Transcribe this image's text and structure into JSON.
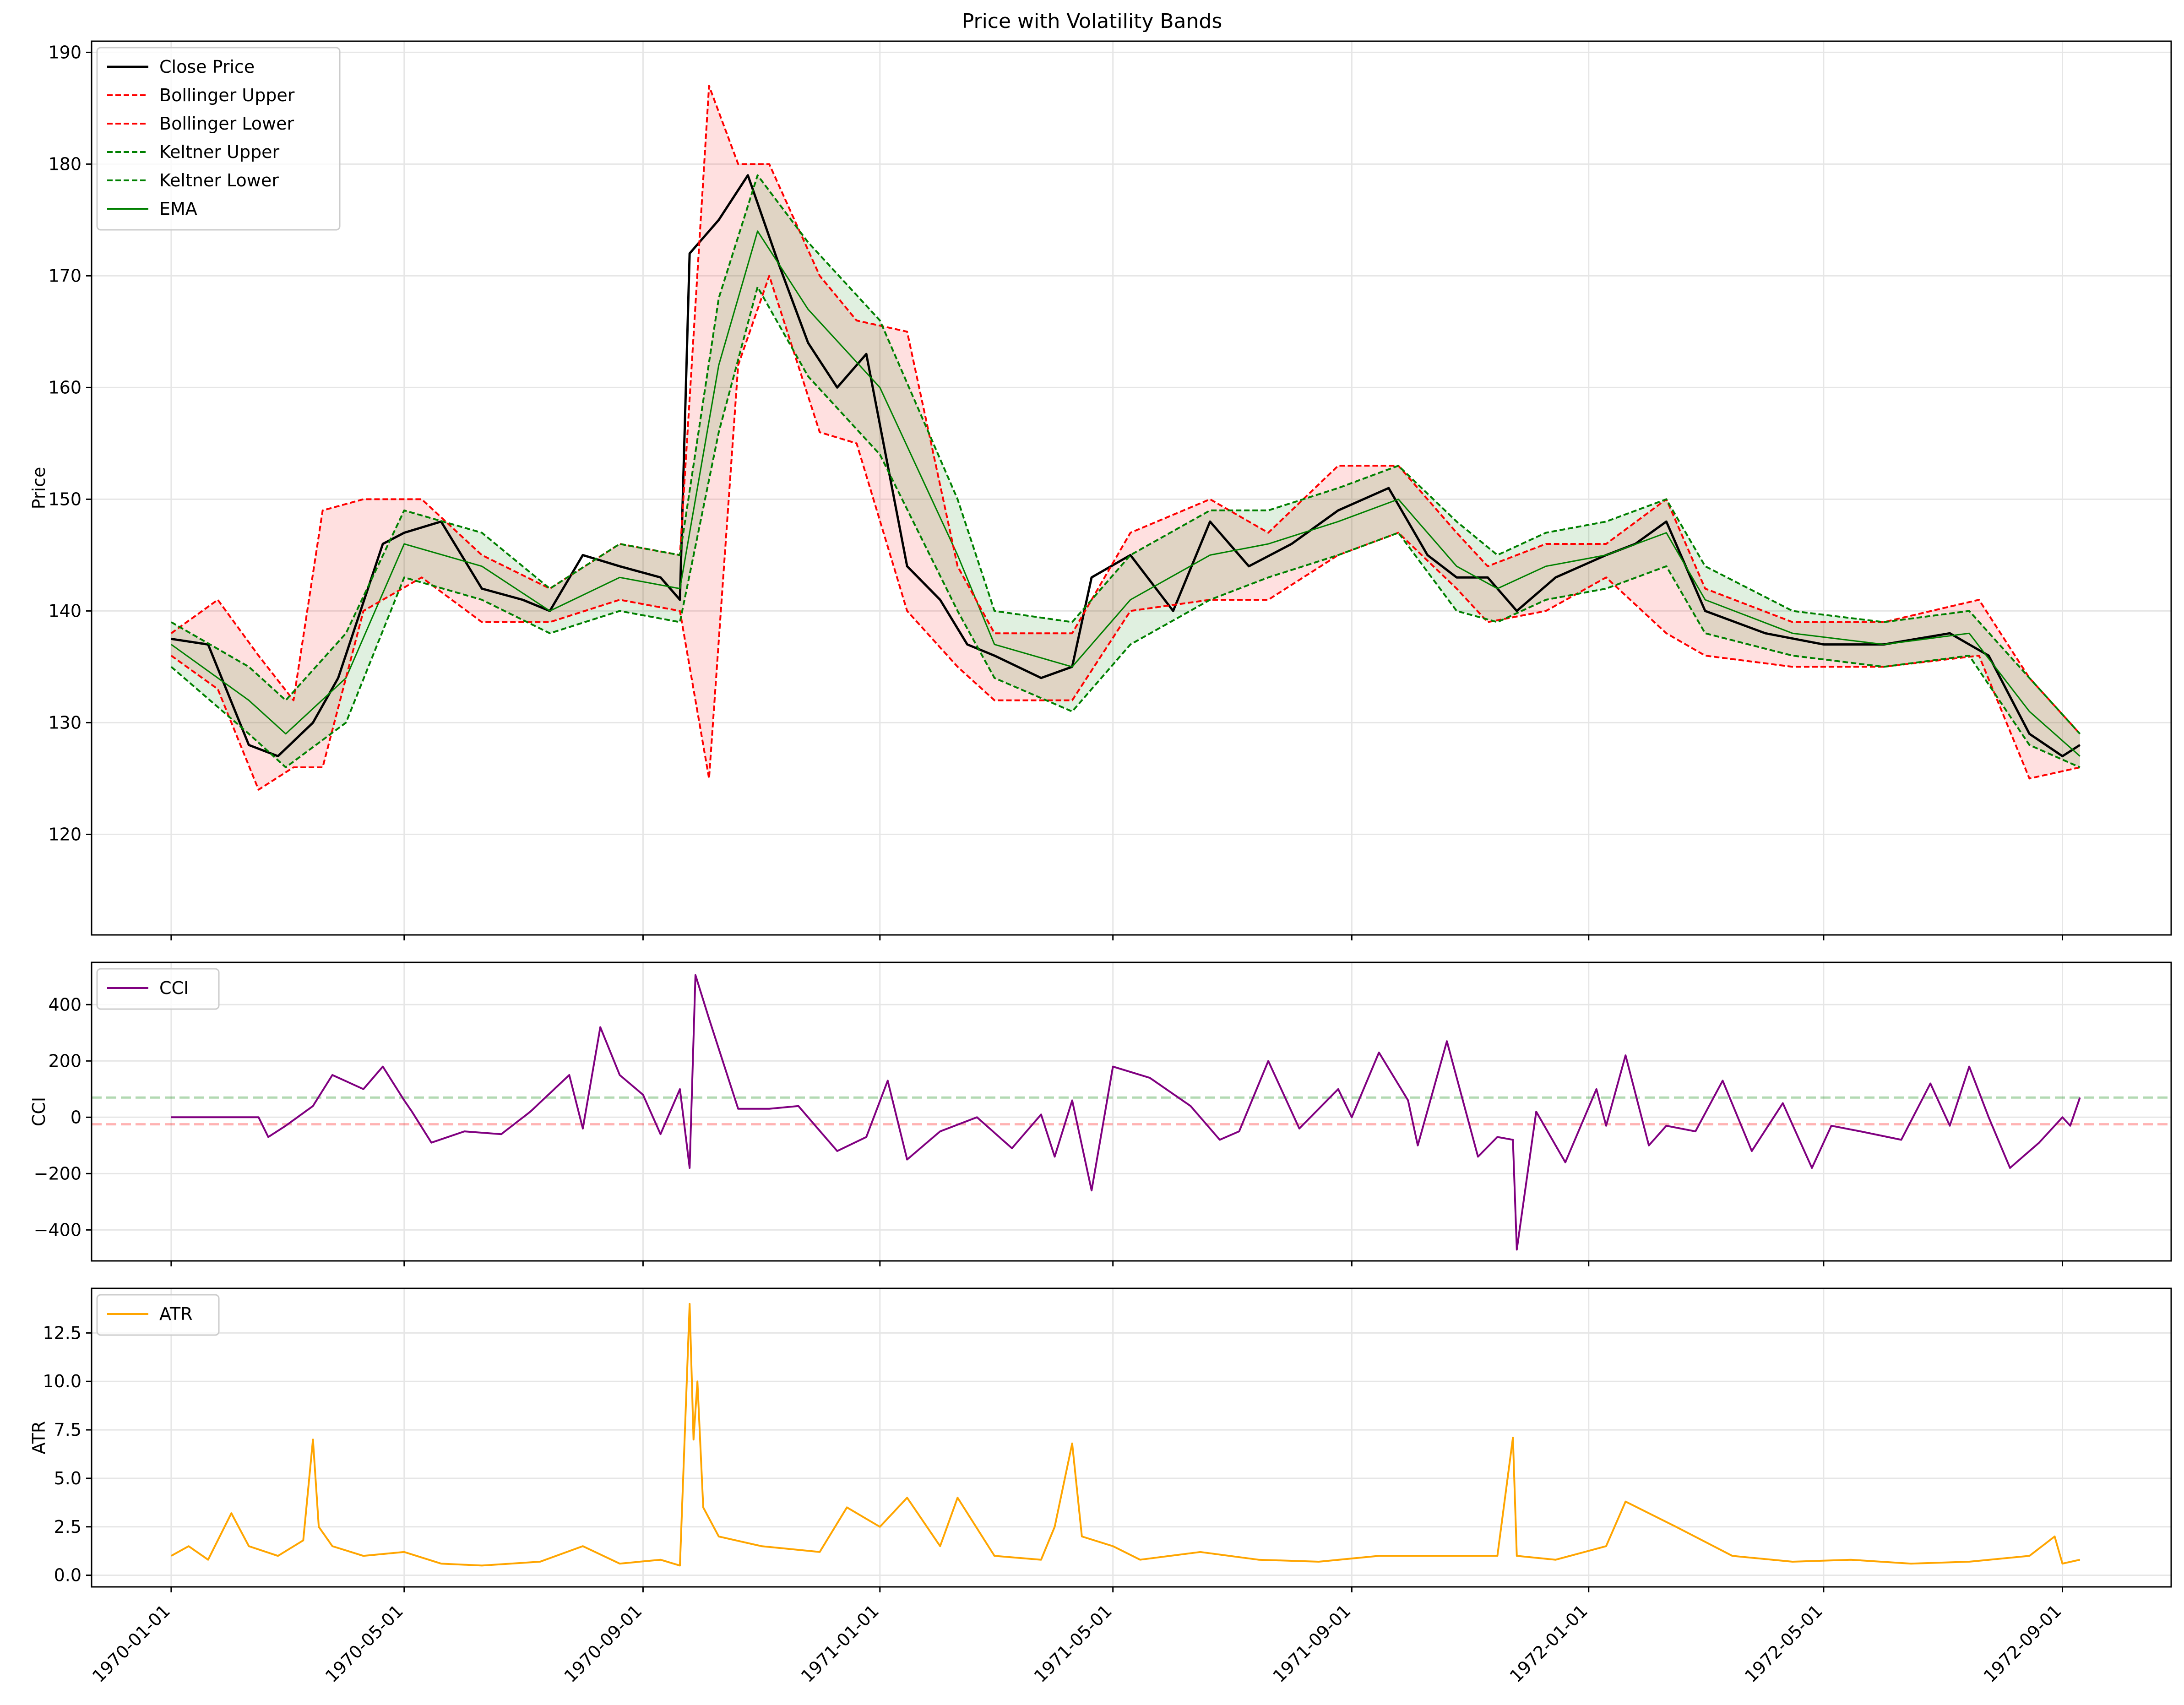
{
  "chart_data": [
    {
      "type": "line",
      "title": "Price with Volatility Bands",
      "ylabel": "Price",
      "xlabel": "",
      "ylim": [
        111,
        191
      ],
      "yticks": [
        120,
        130,
        140,
        150,
        160,
        170,
        180,
        190
      ],
      "grid": true,
      "legend_position": "top-left",
      "legend": [
        {
          "label": "Close Price",
          "color": "#000000",
          "style": "solid"
        },
        {
          "label": "Bollinger Upper",
          "color": "#ff0000",
          "style": "dashed"
        },
        {
          "label": "Bollinger Lower",
          "color": "#ff0000",
          "style": "dashed"
        },
        {
          "label": "Keltner Upper",
          "color": "#008000",
          "style": "dashed"
        },
        {
          "label": "Keltner Lower",
          "color": "#008000",
          "style": "dashed"
        },
        {
          "label": "EMA",
          "color": "#008000",
          "style": "solid"
        }
      ],
      "series": [
        {
          "name": "Close Price",
          "x": [
            "1970-01-01",
            "1970-01-20",
            "1970-02-10",
            "1970-02-25",
            "1970-03-15",
            "1970-03-28",
            "1970-04-20",
            "1970-05-01",
            "1970-05-20",
            "1970-06-10",
            "1970-07-01",
            "1970-07-15",
            "1970-08-01",
            "1970-08-20",
            "1970-09-10",
            "1970-09-20",
            "1970-09-25",
            "1970-10-10",
            "1970-10-25",
            "1970-11-10",
            "1970-11-25",
            "1970-12-10",
            "1970-12-25",
            "1971-01-15",
            "1971-02-01",
            "1971-02-15",
            "1971-03-01",
            "1971-03-25",
            "1971-04-10",
            "1971-04-20",
            "1971-05-10",
            "1971-06-01",
            "1971-06-20",
            "1971-07-10",
            "1971-08-01",
            "1971-08-25",
            "1971-09-20",
            "1971-10-10",
            "1971-10-25",
            "1971-11-10",
            "1971-11-25",
            "1971-12-15",
            "1972-01-10",
            "1972-01-25",
            "1972-02-10",
            "1972-03-01",
            "1972-04-01",
            "1972-05-01",
            "1972-06-01",
            "1972-07-05",
            "1972-07-25",
            "1972-08-15",
            "1972-09-01",
            "1972-09-10"
          ],
          "values": [
            137.5,
            137,
            128,
            127,
            130,
            134,
            146,
            147,
            148,
            142,
            141,
            140,
            145,
            144,
            143,
            141,
            172,
            175,
            179,
            171,
            164,
            160,
            163,
            144,
            141,
            137,
            136,
            134,
            135,
            143,
            145,
            140,
            148,
            144,
            146,
            149,
            151,
            145,
            143,
            143,
            140,
            143,
            145,
            146,
            148,
            140,
            138,
            137,
            137,
            138,
            136,
            129,
            127,
            128
          ]
        },
        {
          "name": "EMA",
          "x": [
            "1970-01-01",
            "1970-02-10",
            "1970-03-01",
            "1970-04-01",
            "1970-05-01",
            "1970-06-10",
            "1970-07-15",
            "1970-08-20",
            "1970-09-20",
            "1970-10-10",
            "1970-10-30",
            "1970-11-25",
            "1971-01-01",
            "1971-02-10",
            "1971-03-01",
            "1971-04-10",
            "1971-05-10",
            "1971-06-20",
            "1971-07-20",
            "1971-08-25",
            "1971-09-25",
            "1971-10-25",
            "1971-11-15",
            "1971-12-10",
            "1972-01-10",
            "1972-02-10",
            "1972-03-01",
            "1972-04-15",
            "1972-06-01",
            "1972-07-15",
            "1972-08-15",
            "1972-09-10"
          ],
          "values": [
            137,
            132,
            129,
            134,
            146,
            144,
            140,
            143,
            142,
            162,
            174,
            167,
            160,
            145,
            137,
            135,
            141,
            145,
            146,
            148,
            150,
            144,
            142,
            144,
            145,
            147,
            141,
            138,
            137,
            138,
            131,
            127
          ]
        },
        {
          "name": "Bollinger Upper",
          "x": [
            "1970-01-01",
            "1970-01-25",
            "1970-02-15",
            "1970-03-05",
            "1970-03-20",
            "1970-04-10",
            "1970-05-10",
            "1970-06-10",
            "1970-07-15",
            "1970-08-20",
            "1970-09-20",
            "1970-10-05",
            "1970-10-20",
            "1970-11-05",
            "1970-12-01",
            "1970-12-20",
            "1971-01-15",
            "1971-02-10",
            "1971-03-01",
            "1971-04-10",
            "1971-05-10",
            "1971-06-20",
            "1971-07-20",
            "1971-08-25",
            "1971-09-25",
            "1971-10-25",
            "1971-11-10",
            "1971-12-10",
            "1972-01-10",
            "1972-02-10",
            "1972-03-01",
            "1972-04-15",
            "1972-06-01",
            "1972-07-20",
            "1972-08-15",
            "1972-09-10"
          ],
          "values": [
            138,
            141,
            136,
            132,
            149,
            150,
            150,
            145,
            142,
            146,
            145,
            187,
            180,
            180,
            170,
            166,
            165,
            144,
            138,
            138,
            147,
            150,
            147,
            153,
            153,
            147,
            144,
            146,
            146,
            150,
            142,
            139,
            139,
            141,
            134,
            129
          ]
        },
        {
          "name": "Bollinger Lower",
          "x": [
            "1970-01-01",
            "1970-01-25",
            "1970-02-15",
            "1970-03-05",
            "1970-03-20",
            "1970-04-10",
            "1970-05-10",
            "1970-06-10",
            "1970-07-15",
            "1970-08-20",
            "1970-09-20",
            "1970-10-05",
            "1970-10-20",
            "1970-11-05",
            "1970-12-01",
            "1970-12-20",
            "1971-01-15",
            "1971-02-10",
            "1971-03-01",
            "1971-04-10",
            "1971-05-10",
            "1971-06-20",
            "1971-07-20",
            "1971-08-25",
            "1971-09-25",
            "1971-10-25",
            "1971-11-10",
            "1971-12-10",
            "1972-01-10",
            "1972-02-10",
            "1972-03-01",
            "1972-04-15",
            "1972-06-01",
            "1972-07-20",
            "1972-08-15",
            "1972-09-10"
          ],
          "values": [
            136,
            133,
            124,
            126,
            126,
            140,
            143,
            139,
            139,
            141,
            140,
            125,
            162,
            170,
            156,
            155,
            140,
            135,
            132,
            132,
            140,
            141,
            141,
            145,
            147,
            142,
            139,
            140,
            143,
            138,
            136,
            135,
            135,
            136,
            125,
            126
          ]
        },
        {
          "name": "Keltner Upper",
          "x": [
            "1970-01-01",
            "1970-02-10",
            "1970-03-01",
            "1970-04-01",
            "1970-05-01",
            "1970-06-10",
            "1970-07-15",
            "1970-08-20",
            "1970-09-20",
            "1970-10-10",
            "1970-10-30",
            "1970-11-25",
            "1971-01-01",
            "1971-02-10",
            "1971-03-01",
            "1971-04-10",
            "1971-05-10",
            "1971-06-20",
            "1971-07-20",
            "1971-08-25",
            "1971-09-25",
            "1971-10-25",
            "1971-11-15",
            "1971-12-10",
            "1972-01-10",
            "1972-02-10",
            "1972-03-01",
            "1972-04-15",
            "1972-06-01",
            "1972-07-15",
            "1972-08-15",
            "1972-09-10"
          ],
          "values": [
            139,
            135,
            132,
            138,
            149,
            147,
            142,
            146,
            145,
            168,
            179,
            173,
            166,
            150,
            140,
            139,
            145,
            149,
            149,
            151,
            153,
            148,
            145,
            147,
            148,
            150,
            144,
            140,
            139,
            140,
            134,
            129
          ]
        },
        {
          "name": "Keltner Lower",
          "x": [
            "1970-01-01",
            "1970-02-10",
            "1970-03-01",
            "1970-04-01",
            "1970-05-01",
            "1970-06-10",
            "1970-07-15",
            "1970-08-20",
            "1970-09-20",
            "1970-10-10",
            "1970-10-30",
            "1970-11-25",
            "1971-01-01",
            "1971-02-10",
            "1971-03-01",
            "1971-04-10",
            "1971-05-10",
            "1971-06-20",
            "1971-07-20",
            "1971-08-25",
            "1971-09-25",
            "1971-10-25",
            "1971-11-15",
            "1971-12-10",
            "1972-01-10",
            "1972-02-10",
            "1972-03-01",
            "1972-04-15",
            "1972-06-01",
            "1972-07-15",
            "1972-08-15",
            "1972-09-10"
          ],
          "values": [
            135,
            129,
            126,
            130,
            143,
            141,
            138,
            140,
            139,
            156,
            169,
            161,
            154,
            140,
            134,
            131,
            137,
            141,
            143,
            145,
            147,
            140,
            139,
            141,
            142,
            144,
            138,
            136,
            135,
            136,
            128,
            126
          ]
        }
      ]
    },
    {
      "type": "line",
      "ylabel": "CCI",
      "ylim": [
        -510,
        550
      ],
      "yticks": [
        -400,
        -200,
        0,
        200,
        400
      ],
      "grid": true,
      "legend_position": "top-left",
      "legend": [
        {
          "label": "CCI",
          "color": "#800080",
          "style": "solid"
        }
      ],
      "thresholds": [
        {
          "value": 70,
          "color": "#008000"
        },
        {
          "value": -25,
          "color": "#ff0000"
        }
      ],
      "series": [
        {
          "name": "CCI",
          "x": [
            "1970-01-01",
            "1970-01-25",
            "1970-02-15",
            "1970-02-20",
            "1970-03-01",
            "1970-03-15",
            "1970-03-25",
            "1970-04-10",
            "1970-04-20",
            "1970-05-01",
            "1970-05-05",
            "1970-05-15",
            "1970-06-01",
            "1970-06-20",
            "1970-07-05",
            "1970-07-25",
            "1970-08-01",
            "1970-08-10",
            "1970-08-20",
            "1970-09-01",
            "1970-09-10",
            "1970-09-20",
            "1970-09-25",
            "1970-09-28",
            "1970-10-05",
            "1970-10-20",
            "1970-11-05",
            "1970-11-20",
            "1970-12-10",
            "1970-12-25",
            "1971-01-05",
            "1971-01-15",
            "1971-02-01",
            "1971-02-20",
            "1971-03-10",
            "1971-03-25",
            "1971-04-01",
            "1971-04-10",
            "1971-04-20",
            "1971-05-01",
            "1971-05-20",
            "1971-06-10",
            "1971-06-25",
            "1971-07-05",
            "1971-07-20",
            "1971-08-05",
            "1971-08-25",
            "1971-09-01",
            "1971-09-15",
            "1971-09-30",
            "1971-10-05",
            "1971-10-20",
            "1971-11-05",
            "1971-11-15",
            "1971-11-23",
            "1971-11-25",
            "1971-12-05",
            "1971-12-20",
            "1972-01-05",
            "1972-01-10",
            "1972-01-20",
            "1972-02-01",
            "1972-02-10",
            "1972-02-25",
            "1972-03-10",
            "1972-03-25",
            "1972-04-10",
            "1972-04-25",
            "1972-05-05",
            "1972-05-20",
            "1972-06-10",
            "1972-06-25",
            "1972-07-05",
            "1972-07-15",
            "1972-07-25",
            "1972-08-05",
            "1972-08-20",
            "1972-09-01",
            "1972-09-05",
            "1972-09-10"
          ],
          "values": [
            0,
            0,
            0,
            -70,
            -30,
            40,
            150,
            100,
            180,
            60,
            20,
            -90,
            -50,
            -60,
            20,
            150,
            -40,
            320,
            150,
            80,
            -60,
            100,
            -180,
            505,
            350,
            30,
            30,
            40,
            -120,
            -70,
            130,
            -150,
            -50,
            0,
            -110,
            10,
            -140,
            60,
            -260,
            180,
            140,
            40,
            -80,
            -50,
            200,
            -40,
            100,
            0,
            230,
            60,
            -100,
            270,
            -140,
            -70,
            -80,
            -470,
            20,
            -160,
            100,
            -30,
            220,
            -100,
            -30,
            -50,
            130,
            -120,
            50,
            -180,
            -30,
            -50,
            -80,
            120,
            -30,
            180,
            0,
            -180,
            -90,
            0,
            -30,
            70
          ]
        }
      ]
    },
    {
      "type": "line",
      "ylabel": "ATR",
      "ylim": [
        -0.6,
        14.8
      ],
      "yticks": [
        0.0,
        2.5,
        5.0,
        7.5,
        10.0,
        12.5
      ],
      "grid": true,
      "legend_position": "top-left",
      "legend": [
        {
          "label": "ATR",
          "color": "#ffa500",
          "style": "solid"
        }
      ],
      "series": [
        {
          "name": "ATR",
          "x": [
            "1970-01-01",
            "1970-01-10",
            "1970-01-20",
            "1970-02-01",
            "1970-02-10",
            "1970-02-25",
            "1970-03-10",
            "1970-03-15",
            "1970-03-18",
            "1970-03-25",
            "1970-04-10",
            "1970-05-01",
            "1970-05-20",
            "1970-06-10",
            "1970-07-10",
            "1970-08-01",
            "1970-08-20",
            "1970-09-10",
            "1970-09-20",
            "1970-09-25",
            "1970-09-27",
            "1970-09-29",
            "1970-10-02",
            "1970-10-10",
            "1970-11-01",
            "1970-12-01",
            "1970-12-15",
            "1971-01-01",
            "1971-01-15",
            "1971-02-01",
            "1971-02-10",
            "1971-03-01",
            "1971-03-25",
            "1971-04-01",
            "1971-04-10",
            "1971-04-15",
            "1971-05-01",
            "1971-05-15",
            "1971-06-15",
            "1971-07-15",
            "1971-08-15",
            "1971-09-15",
            "1971-10-15",
            "1971-11-15",
            "1971-11-23",
            "1971-11-25",
            "1971-12-15",
            "1972-01-10",
            "1972-01-20",
            "1972-02-15",
            "1972-03-15",
            "1972-04-15",
            "1972-05-15",
            "1972-06-15",
            "1972-07-15",
            "1972-08-15",
            "1972-08-28",
            "1972-09-01",
            "1972-09-10"
          ],
          "values": [
            1.0,
            1.5,
            0.8,
            3.2,
            1.5,
            1.0,
            1.8,
            7.0,
            2.5,
            1.5,
            1.0,
            1.2,
            0.6,
            0.5,
            0.7,
            1.5,
            0.6,
            0.8,
            0.5,
            14.0,
            7.0,
            10.0,
            3.5,
            2.0,
            1.5,
            1.2,
            3.5,
            2.5,
            4.0,
            1.5,
            4.0,
            1.0,
            0.8,
            2.5,
            6.8,
            2.0,
            1.5,
            0.8,
            1.2,
            0.8,
            0.7,
            1.0,
            1.0,
            1.0,
            7.1,
            1.0,
            0.8,
            1.5,
            3.8,
            2.5,
            1.0,
            0.7,
            0.8,
            0.6,
            0.7,
            1.0,
            2.0,
            0.6,
            0.8
          ]
        }
      ]
    }
  ],
  "x_axis": {
    "ticks": [
      "1970-01-01",
      "1970-05-01",
      "1970-09-01",
      "1971-01-01",
      "1971-05-01",
      "1971-09-01",
      "1972-01-01",
      "1972-05-01",
      "1972-09-01"
    ],
    "range": [
      "1969-11-21",
      "1972-10-27"
    ]
  }
}
